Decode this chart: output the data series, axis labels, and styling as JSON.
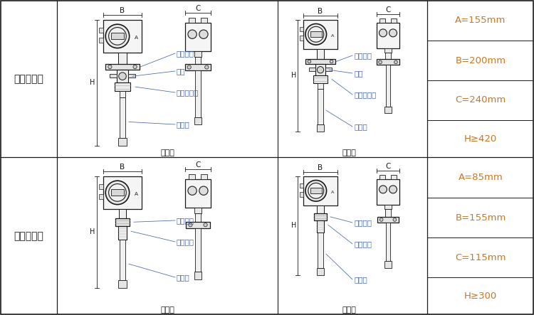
{
  "bg_color": "#ffffff",
  "border_color": "#1a1a1a",
  "text_color_orange": "#c87820",
  "text_color_black": "#1a1a1a",
  "text_color_dim": "#4466aa",
  "section_labels": [
    "法兰连接型",
    "螺纹连接型"
  ],
  "flange_specs": [
    "A=155mm",
    "B=200mm",
    "C=240mm",
    "H≥420"
  ],
  "screw_specs": [
    "A=85mm",
    "B=155mm",
    "C=115mm",
    "H≥300"
  ],
  "subtypes": [
    "一体型",
    "分体型"
  ],
  "dim_labels_flange": [
    "连接法兰",
    "球阀",
    "安装连接件",
    "测量杆"
  ],
  "dim_labels_screw": [
    "锁紧螺母",
    "连接螺丝",
    "测量杆"
  ],
  "title_fontsize": 10,
  "spec_fontsize": 9.5,
  "label_fontsize": 7.5,
  "sub_fontsize": 8.0
}
